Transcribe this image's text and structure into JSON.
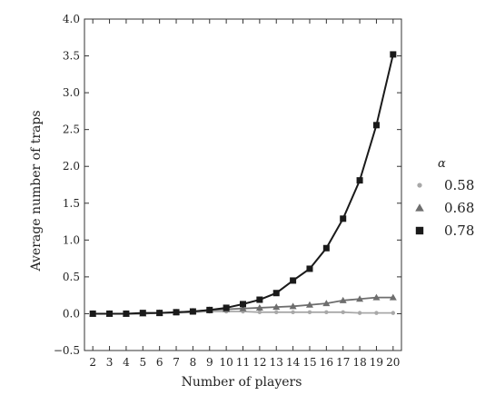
{
  "chart_data": {
    "type": "line",
    "title": "",
    "xlabel": "Number of players",
    "ylabel": "Average number of traps",
    "x": [
      2,
      3,
      4,
      5,
      6,
      7,
      8,
      9,
      10,
      11,
      12,
      13,
      14,
      15,
      16,
      17,
      18,
      19,
      20
    ],
    "x_tick_labels": [
      "2",
      "3",
      "4",
      "5",
      "6",
      "7",
      "8",
      "9",
      "10",
      "11",
      "12",
      "13",
      "14",
      "15",
      "16",
      "17",
      "18",
      "19",
      "20"
    ],
    "ylim": [
      -0.5,
      4.0
    ],
    "y_ticks": [
      -0.5,
      0.0,
      0.5,
      1.0,
      1.5,
      2.0,
      2.5,
      3.0,
      3.5,
      4.0
    ],
    "y_tick_labels": [
      "−0.5",
      "0.0",
      "0.5",
      "1.0",
      "1.5",
      "2.0",
      "2.5",
      "3.0",
      "3.5",
      "4.0"
    ],
    "grid": false,
    "legend": {
      "title": "α",
      "placement": "right"
    },
    "series": [
      {
        "name": "0.58",
        "marker": "circle",
        "color": "#a8a8a8",
        "values": [
          0.0,
          0.0,
          0.0,
          0.0,
          0.01,
          0.01,
          0.02,
          0.03,
          0.03,
          0.03,
          0.02,
          0.02,
          0.02,
          0.02,
          0.02,
          0.02,
          0.01,
          0.01,
          0.01
        ]
      },
      {
        "name": "0.68",
        "marker": "triangle",
        "color": "#6e6e6e",
        "values": [
          0.0,
          0.0,
          0.0,
          0.0,
          0.01,
          0.02,
          0.03,
          0.05,
          0.06,
          0.07,
          0.08,
          0.09,
          0.1,
          0.12,
          0.14,
          0.18,
          0.2,
          0.22,
          0.22
        ]
      },
      {
        "name": "0.78",
        "marker": "square",
        "color": "#1a1a1a",
        "values": [
          0.0,
          0.0,
          0.0,
          0.01,
          0.01,
          0.02,
          0.03,
          0.05,
          0.08,
          0.13,
          0.19,
          0.28,
          0.45,
          0.61,
          0.89,
          1.29,
          1.81,
          2.56,
          3.52
        ]
      }
    ]
  }
}
